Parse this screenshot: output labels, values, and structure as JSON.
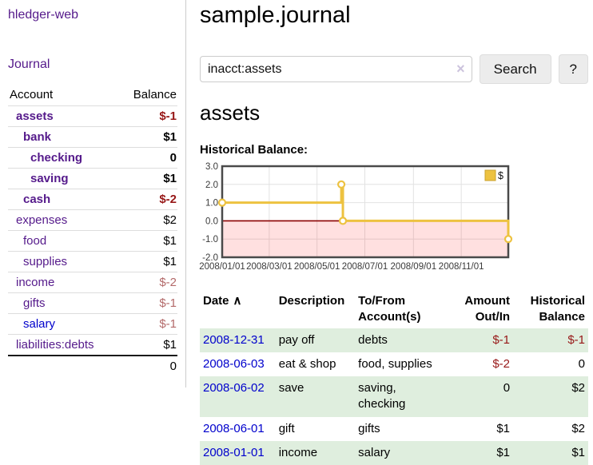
{
  "colors": {
    "link_purple": "#551a8b",
    "link_blue": "#0000cc",
    "negative_strong": "#971717",
    "negative_muted": "#b36a6a",
    "row_stripe_green": "#dfeede",
    "chart_line_gold": "#edc240",
    "chart_zero_line": "#8b0000",
    "chart_negative_fill": "rgba(255,0,0,0.12)",
    "chart_border": "#4a4a4a"
  },
  "sidebar": {
    "brand": "hledger-web",
    "nav": [
      {
        "label": "Journal"
      }
    ],
    "table": {
      "headers": [
        "Account",
        "Balance"
      ],
      "rows": [
        {
          "account": "assets",
          "indent": 1,
          "bold": true,
          "balance": "$-1",
          "balance_style": "neg-strong"
        },
        {
          "account": "bank",
          "indent": 2,
          "bold": true,
          "balance": "$1",
          "balance_style": "pos"
        },
        {
          "account": "checking",
          "indent": 3,
          "bold": true,
          "balance": "0",
          "balance_style": "pos"
        },
        {
          "account": "saving",
          "indent": 3,
          "bold": true,
          "balance": "$1",
          "balance_style": "pos"
        },
        {
          "account": "cash",
          "indent": 2,
          "bold": true,
          "balance": "$-2",
          "balance_style": "neg-strong"
        },
        {
          "account": "expenses",
          "indent": 1,
          "bold": false,
          "balance": "$2",
          "balance_style": "pos"
        },
        {
          "account": "food",
          "indent": 2,
          "bold": false,
          "balance": "$1",
          "balance_style": "pos"
        },
        {
          "account": "supplies",
          "indent": 2,
          "bold": false,
          "balance": "$1",
          "balance_style": "pos"
        },
        {
          "account": "income",
          "indent": 1,
          "bold": false,
          "balance": "$-2",
          "balance_style": "neg-muted"
        },
        {
          "account": "gifts",
          "indent": 2,
          "bold": false,
          "balance": "$-1",
          "balance_style": "neg-muted"
        },
        {
          "account": "salary",
          "indent": 2,
          "bold": false,
          "link_style": "blue",
          "balance": "$-1",
          "balance_style": "neg-muted"
        },
        {
          "account": "liabilities:debts",
          "indent": 1,
          "bold": false,
          "balance": "$1",
          "balance_style": "pos"
        }
      ],
      "total": "0"
    }
  },
  "main": {
    "title": "sample.journal",
    "search": {
      "value": "inacct:assets",
      "clear_icon": "×",
      "button": "Search",
      "help_button": "?"
    },
    "account_heading": "assets",
    "chart_title": "Historical Balance:",
    "register": {
      "headers": [
        "Date",
        "Description",
        "To/From\nAccount(s)",
        "Amount\nOut/In",
        "Historical\nBalance"
      ],
      "sort_icon": "∧",
      "rows": [
        {
          "date": "2008-12-31",
          "description": "pay off",
          "accounts": "debts",
          "amount": "$-1",
          "amount_style": "neg",
          "balance": "$-1",
          "balance_style": "neg"
        },
        {
          "date": "2008-06-03",
          "description": "eat & shop",
          "accounts": "food, supplies",
          "amount": "$-2",
          "amount_style": "neg",
          "balance": "0",
          "balance_style": "pos"
        },
        {
          "date": "2008-06-02",
          "description": "save",
          "accounts": "saving,\nchecking",
          "amount": "0",
          "amount_style": "pos",
          "balance": "$2",
          "balance_style": "pos"
        },
        {
          "date": "2008-06-01",
          "description": "gift",
          "accounts": "gifts",
          "amount": "$1",
          "amount_style": "pos",
          "balance": "$2",
          "balance_style": "pos"
        },
        {
          "date": "2008-01-01",
          "description": "income",
          "accounts": "salary",
          "amount": "$1",
          "amount_style": "pos",
          "balance": "$1",
          "balance_style": "pos"
        }
      ]
    }
  },
  "chart_data": {
    "type": "line",
    "step": true,
    "title": "Historical Balance:",
    "series": [
      {
        "name": "$",
        "color": "#edc240",
        "points": [
          [
            "2008-01-01",
            1
          ],
          [
            "2008-06-01",
            2
          ],
          [
            "2008-06-03",
            0
          ],
          [
            "2008-12-31",
            -1
          ]
        ]
      }
    ],
    "x_range": [
      "2008-01-01",
      "2008-12-31"
    ],
    "x_ticks": [
      "2008/01/01",
      "2008/03/01",
      "2008/05/01",
      "2008/07/01",
      "2008/09/01",
      "2008/11/01"
    ],
    "y_ticks": [
      "3.0",
      "2.0",
      "1.0",
      "0.0",
      "-1.0",
      "-2.0"
    ],
    "ylim": [
      -2,
      3
    ],
    "grid": true,
    "legend_position": "top-right",
    "legend_label": "$",
    "zero_line_color": "#8b0000",
    "negative_region_fill": "rgba(255,0,0,0.12)"
  }
}
